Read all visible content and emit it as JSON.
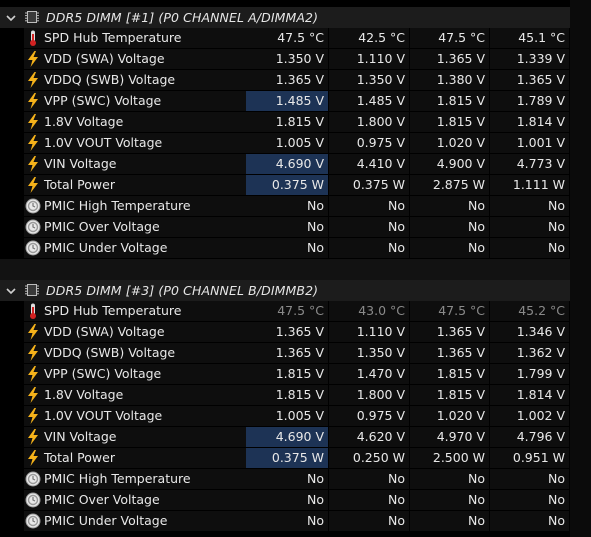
{
  "groups": [
    {
      "title": "DDR5 DIMM [#1] (P0 CHANNEL A/DIMMA2)",
      "rows": [
        {
          "icon": "thermometer-icon",
          "name": "SPD Hub Temperature",
          "v": [
            "47.5 °C",
            "42.5 °C",
            "47.5 °C",
            "45.1 °C"
          ],
          "hl": [
            false,
            false,
            false,
            false
          ],
          "dim": false
        },
        {
          "icon": "lightning-icon",
          "name": "VDD (SWA) Voltage",
          "v": [
            "1.350 V",
            "1.110 V",
            "1.365 V",
            "1.339 V"
          ],
          "hl": [
            false,
            false,
            false,
            false
          ],
          "dim": false
        },
        {
          "icon": "lightning-icon",
          "name": "VDDQ (SWB) Voltage",
          "v": [
            "1.365 V",
            "1.350 V",
            "1.380 V",
            "1.365 V"
          ],
          "hl": [
            false,
            false,
            false,
            false
          ],
          "dim": false
        },
        {
          "icon": "lightning-icon",
          "name": "VPP (SWC) Voltage",
          "v": [
            "1.485 V",
            "1.485 V",
            "1.815 V",
            "1.789 V"
          ],
          "hl": [
            true,
            false,
            false,
            false
          ],
          "dim": false
        },
        {
          "icon": "lightning-icon",
          "name": "1.8V Voltage",
          "v": [
            "1.815 V",
            "1.800 V",
            "1.815 V",
            "1.814 V"
          ],
          "hl": [
            false,
            false,
            false,
            false
          ],
          "dim": false
        },
        {
          "icon": "lightning-icon",
          "name": "1.0V VOUT Voltage",
          "v": [
            "1.005 V",
            "0.975 V",
            "1.020 V",
            "1.001 V"
          ],
          "hl": [
            false,
            false,
            false,
            false
          ],
          "dim": false
        },
        {
          "icon": "lightning-icon",
          "name": "VIN Voltage",
          "v": [
            "4.690 V",
            "4.410 V",
            "4.900 V",
            "4.773 V"
          ],
          "hl": [
            true,
            false,
            false,
            false
          ],
          "dim": false
        },
        {
          "icon": "lightning-icon",
          "name": "Total Power",
          "v": [
            "0.375 W",
            "0.375 W",
            "2.875 W",
            "1.111 W"
          ],
          "hl": [
            true,
            false,
            false,
            false
          ],
          "dim": false
        },
        {
          "icon": "clock-icon",
          "name": "PMIC High Temperature",
          "v": [
            "No",
            "No",
            "No",
            "No"
          ],
          "hl": [
            false,
            false,
            false,
            false
          ],
          "dim": false
        },
        {
          "icon": "clock-icon",
          "name": "PMIC Over Voltage",
          "v": [
            "No",
            "No",
            "No",
            "No"
          ],
          "hl": [
            false,
            false,
            false,
            false
          ],
          "dim": false
        },
        {
          "icon": "clock-icon",
          "name": "PMIC Under Voltage",
          "v": [
            "No",
            "No",
            "No",
            "No"
          ],
          "hl": [
            false,
            false,
            false,
            false
          ],
          "dim": false
        }
      ]
    },
    {
      "title": "DDR5 DIMM [#3] (P0 CHANNEL B/DIMMB2)",
      "rows": [
        {
          "icon": "thermometer-icon",
          "name": "SPD Hub Temperature",
          "v": [
            "47.5 °C",
            "43.0 °C",
            "47.5 °C",
            "45.2 °C"
          ],
          "hl": [
            false,
            false,
            false,
            false
          ],
          "dim": true
        },
        {
          "icon": "lightning-icon",
          "name": "VDD (SWA) Voltage",
          "v": [
            "1.365 V",
            "1.110 V",
            "1.365 V",
            "1.346 V"
          ],
          "hl": [
            false,
            false,
            false,
            false
          ],
          "dim": false
        },
        {
          "icon": "lightning-icon",
          "name": "VDDQ (SWB) Voltage",
          "v": [
            "1.365 V",
            "1.350 V",
            "1.365 V",
            "1.362 V"
          ],
          "hl": [
            false,
            false,
            false,
            false
          ],
          "dim": false
        },
        {
          "icon": "lightning-icon",
          "name": "VPP (SWC) Voltage",
          "v": [
            "1.815 V",
            "1.470 V",
            "1.815 V",
            "1.799 V"
          ],
          "hl": [
            false,
            false,
            false,
            false
          ],
          "dim": false
        },
        {
          "icon": "lightning-icon",
          "name": "1.8V Voltage",
          "v": [
            "1.815 V",
            "1.800 V",
            "1.815 V",
            "1.814 V"
          ],
          "hl": [
            false,
            false,
            false,
            false
          ],
          "dim": false
        },
        {
          "icon": "lightning-icon",
          "name": "1.0V VOUT Voltage",
          "v": [
            "1.005 V",
            "0.975 V",
            "1.020 V",
            "1.002 V"
          ],
          "hl": [
            false,
            false,
            false,
            false
          ],
          "dim": false
        },
        {
          "icon": "lightning-icon",
          "name": "VIN Voltage",
          "v": [
            "4.690 V",
            "4.620 V",
            "4.970 V",
            "4.796 V"
          ],
          "hl": [
            true,
            false,
            false,
            false
          ],
          "dim": false
        },
        {
          "icon": "lightning-icon",
          "name": "Total Power",
          "v": [
            "0.375 W",
            "0.250 W",
            "2.500 W",
            "0.951 W"
          ],
          "hl": [
            true,
            false,
            false,
            false
          ],
          "dim": false
        },
        {
          "icon": "clock-icon",
          "name": "PMIC High Temperature",
          "v": [
            "No",
            "No",
            "No",
            "No"
          ],
          "hl": [
            false,
            false,
            false,
            false
          ],
          "dim": false
        },
        {
          "icon": "clock-icon",
          "name": "PMIC Over Voltage",
          "v": [
            "No",
            "No",
            "No",
            "No"
          ],
          "hl": [
            false,
            false,
            false,
            false
          ],
          "dim": false
        },
        {
          "icon": "clock-icon",
          "name": "PMIC Under Voltage",
          "v": [
            "No",
            "No",
            "No",
            "No"
          ],
          "hl": [
            false,
            false,
            false,
            false
          ],
          "dim": false
        }
      ]
    }
  ],
  "colors": {
    "highlight": "#1d3355",
    "lightning": "#f5b21a",
    "thermometer": "#d22222"
  }
}
